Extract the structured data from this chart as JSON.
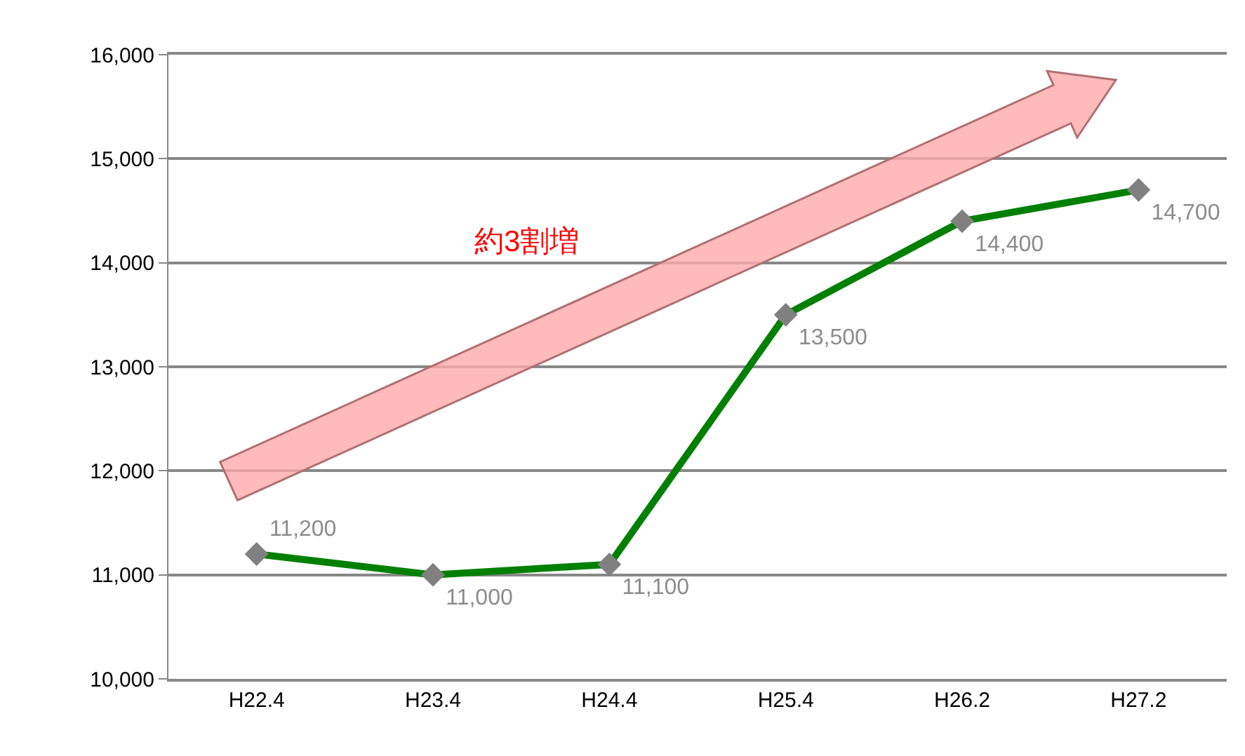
{
  "chart_data": {
    "type": "line",
    "categories": [
      "H22.4",
      "H23.4",
      "H24.4",
      "H25.4",
      "H26.2",
      "H27.2"
    ],
    "series": [
      {
        "color": "#008000",
        "values": [
          11200,
          11000,
          11100,
          13500,
          14400,
          14700
        ],
        "value_labels": [
          "11,200",
          "11,000",
          "11,100",
          "13,500",
          "14,400",
          "14,700"
        ]
      }
    ],
    "ylim": [
      10000,
      16000
    ],
    "yticks": [
      {
        "value": 10000,
        "label": "10,000"
      },
      {
        "value": 11000,
        "label": "11,000"
      },
      {
        "value": 12000,
        "label": "12,000"
      },
      {
        "value": 13000,
        "label": "13,000"
      },
      {
        "value": 14000,
        "label": "14,000"
      },
      {
        "value": 15000,
        "label": "15,000"
      },
      {
        "value": 16000,
        "label": "16,000"
      }
    ],
    "annotations": [
      "約3割増"
    ],
    "grid": "y",
    "marker": "diamond",
    "line_style": "solid"
  }
}
